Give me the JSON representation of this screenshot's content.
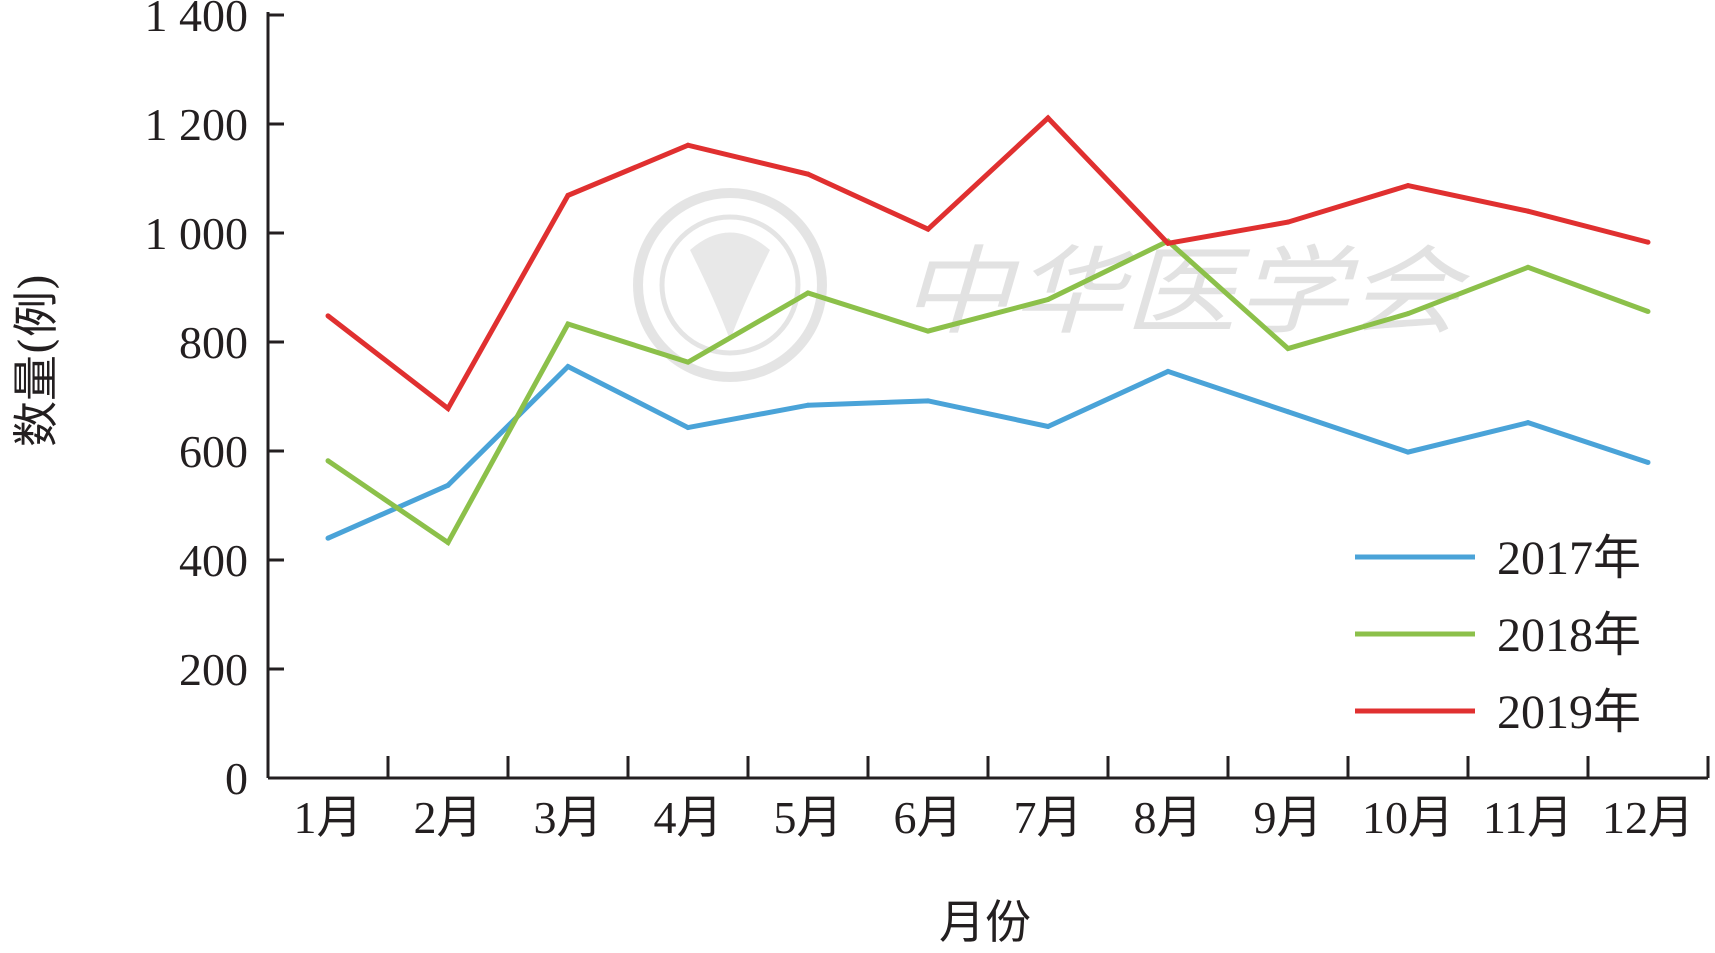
{
  "chart_data": {
    "type": "line",
    "categories": [
      "1月",
      "2月",
      "3月",
      "4月",
      "5月",
      "6月",
      "7月",
      "8月",
      "9月",
      "10月",
      "11月",
      "12月"
    ],
    "series": [
      {
        "name": "2017年",
        "color": "#4aa3d8",
        "values": [
          440,
          537,
          755,
          643,
          684,
          692,
          645,
          746,
          672,
          598,
          652,
          579
        ]
      },
      {
        "name": "2018年",
        "color": "#8cc04a",
        "values": [
          582,
          432,
          833,
          763,
          890,
          820,
          878,
          985,
          788,
          852,
          937,
          856
        ]
      },
      {
        "name": "2019年",
        "color": "#e03030",
        "values": [
          848,
          678,
          1069,
          1161,
          1108,
          1007,
          1211,
          981,
          1020,
          1087,
          1040,
          983
        ]
      }
    ],
    "xlabel": "月份",
    "ylabel": "数量(例)",
    "ylim": [
      0,
      1400
    ],
    "yticks": [
      0,
      200,
      400,
      600,
      800,
      1000,
      1200,
      1400
    ],
    "ytick_labels": [
      "0",
      "200",
      "400",
      "600",
      "800",
      "1 000",
      "1 200",
      "1 400"
    ],
    "legend": "bottom-right",
    "grid": false
  },
  "watermark": {
    "text": "中华医学会",
    "icon": "society-seal-icon"
  }
}
